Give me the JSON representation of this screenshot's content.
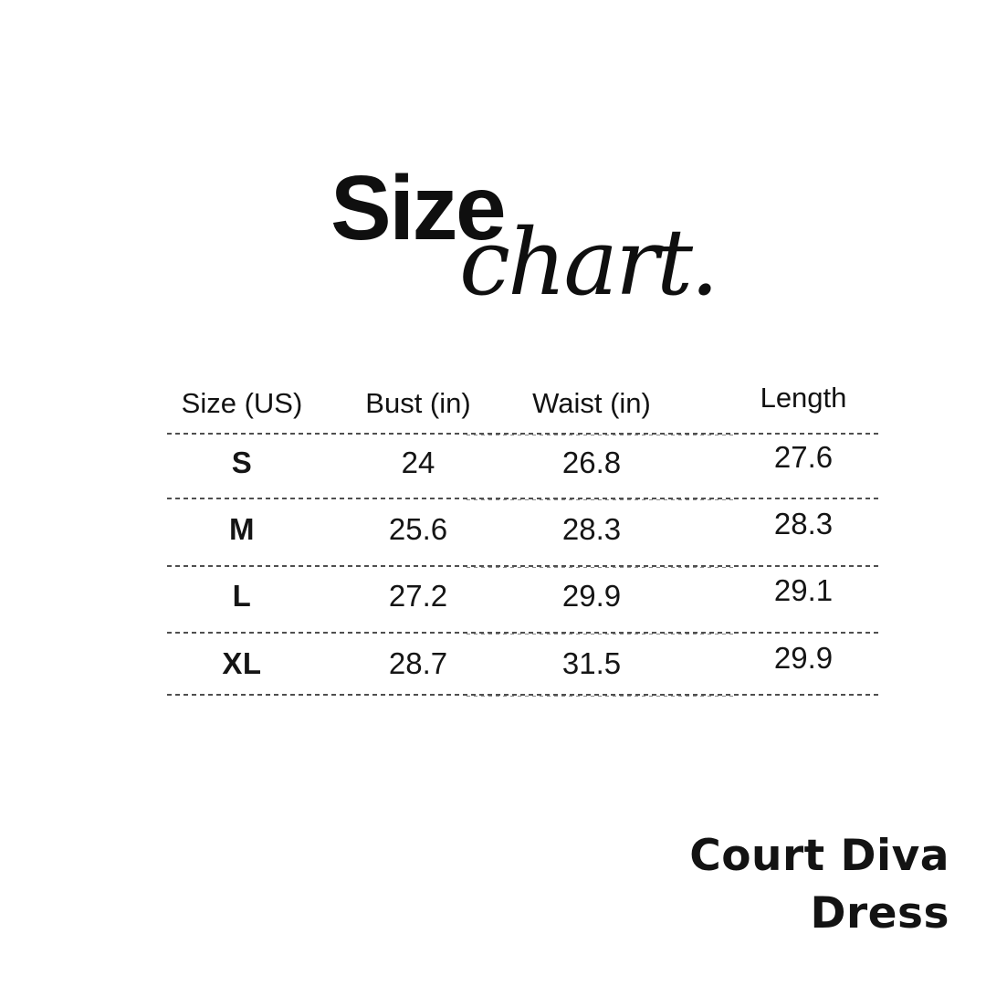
{
  "page": {
    "background_color": "#ffffff",
    "text_color": "#121212",
    "divider_color": "#4f4f4f"
  },
  "title": {
    "word1": "Size",
    "word2": "chart."
  },
  "size_table": {
    "columns": [
      "Size (US)",
      "Bust (in)",
      "Waist (in)",
      "Length"
    ],
    "rows": [
      {
        "size": "S",
        "bust": "24",
        "waist": "26.8",
        "length": "27.6"
      },
      {
        "size": "M",
        "bust": "25.6",
        "waist": "28.3",
        "length": "28.3"
      },
      {
        "size": "L",
        "bust": "27.2",
        "waist": "29.9",
        "length": "29.1"
      },
      {
        "size": "XL",
        "bust": "28.7",
        "waist": "31.5",
        "length": "29.9"
      }
    ]
  },
  "product": {
    "line1": "Court Diva",
    "line2": "Dress"
  },
  "chart_data": {
    "type": "table",
    "title": "Size chart.",
    "columns": [
      "Size (US)",
      "Bust (in)",
      "Waist (in)",
      "Length"
    ],
    "rows": [
      [
        "S",
        "24",
        "26.8",
        "27.6"
      ],
      [
        "M",
        "25.6",
        "28.3",
        "28.3"
      ],
      [
        "L",
        "27.2",
        "29.9",
        "29.1"
      ],
      [
        "XL",
        "28.7",
        "31.5",
        "29.9"
      ]
    ]
  }
}
